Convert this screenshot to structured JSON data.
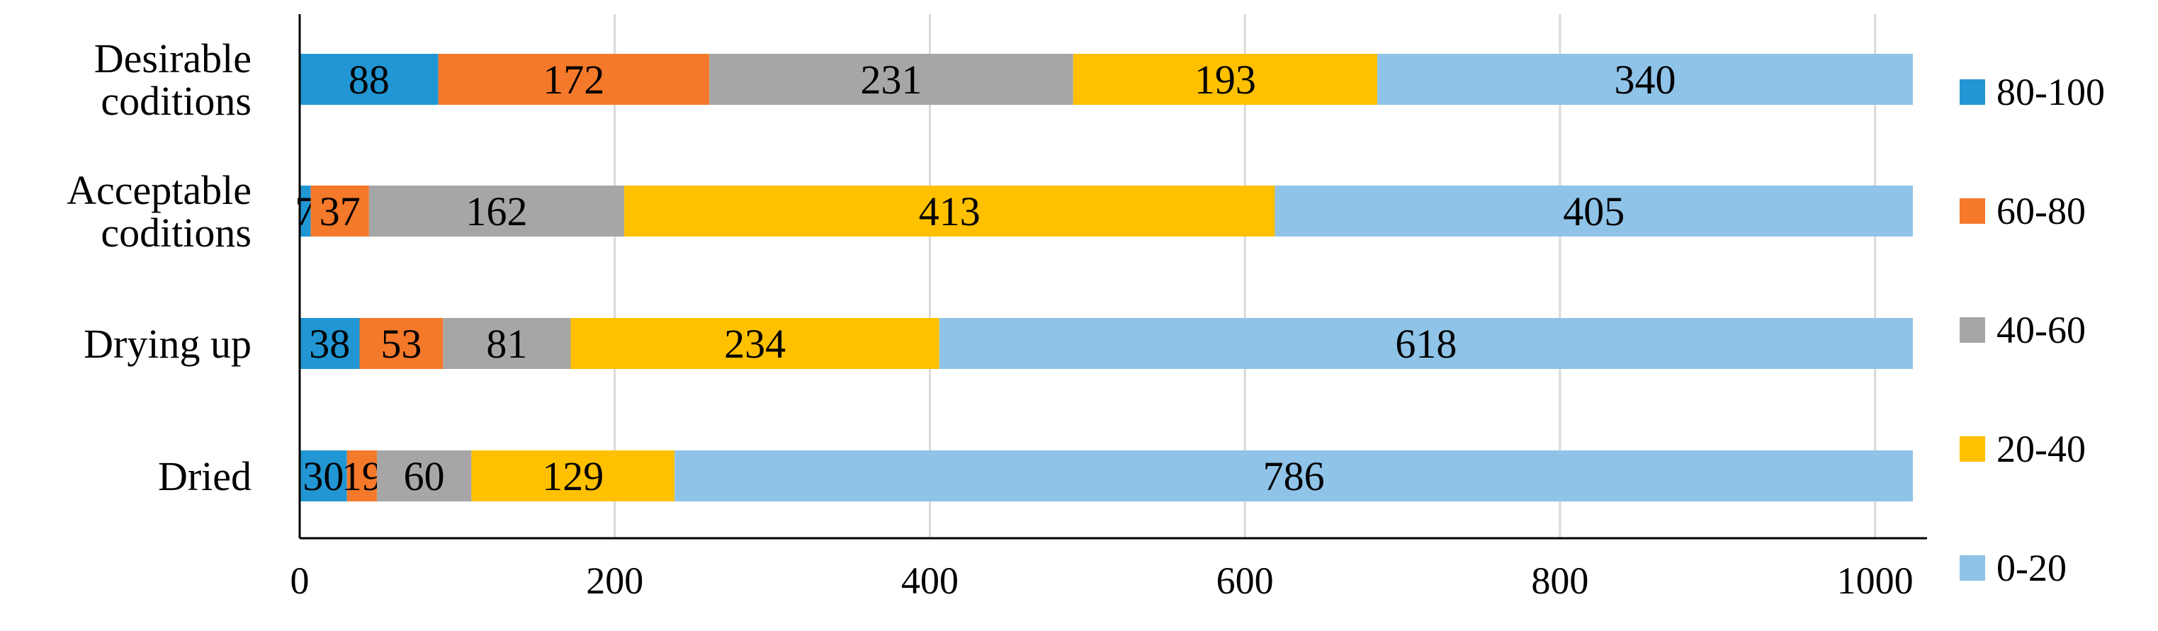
{
  "chart_data": {
    "type": "bar",
    "orientation": "horizontal",
    "stacked": true,
    "categories": [
      "Desirable\ncoditions",
      "Acceptable\ncoditions",
      "Drying up",
      "Dried"
    ],
    "series": [
      {
        "name": "80-100",
        "color": "#2196D3",
        "values": [
          88,
          7,
          38,
          30
        ]
      },
      {
        "name": "60-80",
        "color": "#F5792A",
        "values": [
          172,
          37,
          53,
          19
        ]
      },
      {
        "name": "40-60",
        "color": "#A6A6A6",
        "values": [
          231,
          162,
          81,
          60
        ]
      },
      {
        "name": "20-40",
        "color": "#FFC000",
        "values": [
          193,
          413,
          234,
          129
        ]
      },
      {
        "name": "0-20",
        "color": "#8FC3E8",
        "values": [
          340,
          405,
          618,
          786
        ]
      }
    ],
    "x_ticks": [
      0,
      200,
      400,
      600,
      800,
      1000
    ],
    "xlim": [
      0,
      1024
    ],
    "grid": "vertical",
    "legend_position": "right",
    "xlabel": "",
    "ylabel": "",
    "title": ""
  }
}
